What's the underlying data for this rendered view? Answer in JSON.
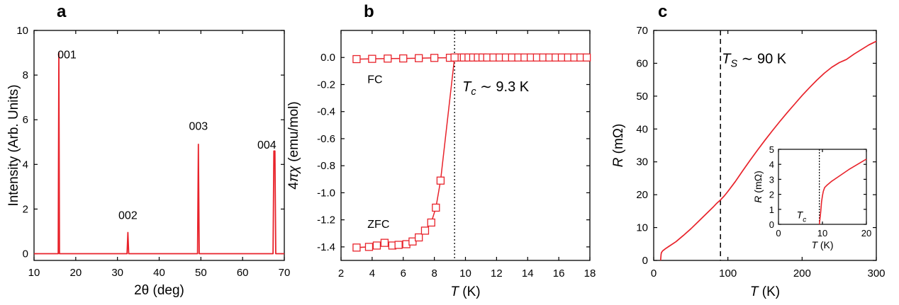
{
  "figure": {
    "panels": {
      "a": {
        "letter": "a"
      },
      "b": {
        "letter": "b"
      },
      "c": {
        "letter": "c"
      }
    }
  },
  "chart_data": [
    {
      "id": "a",
      "type": "line",
      "title": "",
      "xlabel": "2θ (deg)",
      "ylabel": "Intensity (Arb. Units)",
      "xlim": [
        10,
        70
      ],
      "ylim": [
        -0.3,
        10
      ],
      "xticks": [
        10,
        20,
        30,
        40,
        50,
        60,
        70
      ],
      "yticks": [
        0,
        2,
        4,
        6,
        8,
        10
      ],
      "grid": false,
      "color": "#e8232b",
      "series": [
        {
          "x": [
            10,
            15.8,
            15.95,
            16.1,
            32.3,
            32.5,
            32.7,
            49.2,
            49.4,
            49.6,
            67.3,
            67.5,
            67.75,
            67.95,
            70
          ],
          "y": [
            0,
            0,
            9.0,
            0,
            0,
            0.95,
            0,
            0,
            4.9,
            0,
            0,
            4.6,
            4.6,
            0,
            0
          ]
        }
      ],
      "annotations": [
        {
          "text": "001",
          "x": 17.9,
          "y": 8.75
        },
        {
          "text": "002",
          "x": 32.5,
          "y": 1.55
        },
        {
          "text": "003",
          "x": 49.4,
          "y": 5.55
        },
        {
          "text": "004",
          "x": 65.8,
          "y": 4.7
        }
      ]
    },
    {
      "id": "b",
      "type": "line",
      "title": "",
      "xlabel": "T (K)",
      "ylabel": "4πχ (emu/mol)",
      "xlim": [
        2,
        18
      ],
      "ylim": [
        -1.5,
        0.2
      ],
      "xticks": [
        2,
        4,
        6,
        8,
        10,
        12,
        14,
        16,
        18
      ],
      "yticks": [
        0.0,
        -0.2,
        -0.4,
        -0.6,
        -0.8,
        -1.0,
        -1.2,
        -1.4
      ],
      "ytick_labels": [
        "0.0",
        "-0.2",
        "-0.4",
        "-0.6",
        "-0.8",
        "-1.0",
        "-1.2",
        "-1.4"
      ],
      "grid": false,
      "color": "#e8232b",
      "marker": "open-square",
      "series": [
        {
          "name": "FC",
          "x": [
            3.0,
            4.0,
            5.0,
            6.0,
            7.0,
            8.0,
            9.0,
            9.6,
            9.9,
            10.2,
            10.5,
            10.8,
            11.1,
            11.4,
            11.8,
            12.2,
            12.6,
            13.0,
            13.4,
            13.8,
            14.2,
            14.6,
            15.0,
            15.4,
            15.8,
            16.2,
            16.6,
            17.0,
            17.4,
            17.8
          ],
          "y": [
            -0.012,
            -0.01,
            -0.008,
            -0.007,
            -0.005,
            -0.003,
            -0.002,
            0,
            0,
            0,
            0,
            0,
            0,
            0,
            0,
            0,
            0,
            0,
            0,
            0,
            0,
            0,
            0,
            0,
            0,
            0,
            0,
            0,
            0,
            0
          ]
        },
        {
          "name": "ZFC",
          "x": [
            3.0,
            3.8,
            4.3,
            4.8,
            5.3,
            5.7,
            6.2,
            6.6,
            7.0,
            7.4,
            7.8,
            8.1,
            8.4,
            9.3
          ],
          "y": [
            -1.405,
            -1.4,
            -1.39,
            -1.37,
            -1.39,
            -1.385,
            -1.38,
            -1.36,
            -1.33,
            -1.28,
            -1.22,
            -1.11,
            -0.91,
            0.0
          ]
        }
      ],
      "vline": {
        "x": 9.3,
        "style": "dotted"
      },
      "annotations": [
        {
          "text": "FC",
          "x": 3.7,
          "y": -0.19
        },
        {
          "text": "ZFC",
          "x": 3.7,
          "y": -1.26
        },
        {
          "text_main": "T",
          "text_sub": "c",
          "text_rest": " ∼ 9.3 K",
          "x": 9.8,
          "y": -0.25
        }
      ]
    },
    {
      "id": "c",
      "type": "line",
      "title": "",
      "xlabel": "T (K)",
      "ylabel": "R (mΩ)",
      "xlim": [
        0,
        300
      ],
      "ylim": [
        0,
        70
      ],
      "xticks": [
        0,
        100,
        200,
        300
      ],
      "yticks": [
        0,
        10,
        20,
        30,
        40,
        50,
        60,
        70
      ],
      "grid": false,
      "color": "#e8232b",
      "series": [
        {
          "x": [
            9.3,
            9.6,
            10,
            10.5,
            12,
            16,
            20,
            30,
            40,
            50,
            60,
            70,
            80,
            85,
            90,
            95,
            100,
            110,
            120,
            130,
            140,
            150,
            160,
            170,
            180,
            190,
            200,
            210,
            220,
            230,
            240,
            250,
            258,
            260,
            270,
            280,
            290,
            300
          ],
          "y": [
            0,
            0.8,
            1.9,
            2.4,
            2.9,
            3.6,
            4.2,
            5.7,
            7.6,
            9.6,
            11.8,
            14.0,
            16.2,
            17.4,
            18.4,
            19.6,
            21.0,
            24.0,
            27.3,
            30.5,
            33.6,
            36.6,
            39.5,
            42.3,
            45.0,
            47.6,
            50.2,
            52.6,
            54.9,
            57.0,
            58.8,
            60.2,
            61.0,
            61.2,
            62.8,
            64.2,
            65.6,
            66.7
          ]
        }
      ],
      "vline": {
        "x": 90,
        "style": "dashed"
      },
      "annotations": [
        {
          "text_main": "T",
          "text_sub": "S",
          "text_rest": " ∼ 90 K",
          "x": 92,
          "y": 60
        }
      ],
      "inset": {
        "type": "line",
        "xlabel": "T (K)",
        "ylabel": "R (mΩ)",
        "xlim": [
          0,
          20
        ],
        "ylim": [
          0,
          5
        ],
        "xticks": [
          0,
          10,
          20
        ],
        "yticks": [
          0,
          1,
          2,
          3,
          4,
          5
        ],
        "series": [
          {
            "x": [
              9.3,
              9.6,
              9.8,
              10.0,
              10.2,
              10.5,
              11.0,
              12.0,
              14.0,
              16.0,
              18.0,
              20.0
            ],
            "y": [
              0,
              0.8,
              1.5,
              1.9,
              2.2,
              2.45,
              2.6,
              2.85,
              3.25,
              3.65,
              4.0,
              4.35
            ]
          }
        ],
        "vline": {
          "x": 9.3,
          "style": "dotted"
        },
        "annotations": [
          {
            "text_main": "T",
            "text_sub": "c",
            "x": 6.4,
            "y": 0.5
          }
        ]
      }
    }
  ]
}
